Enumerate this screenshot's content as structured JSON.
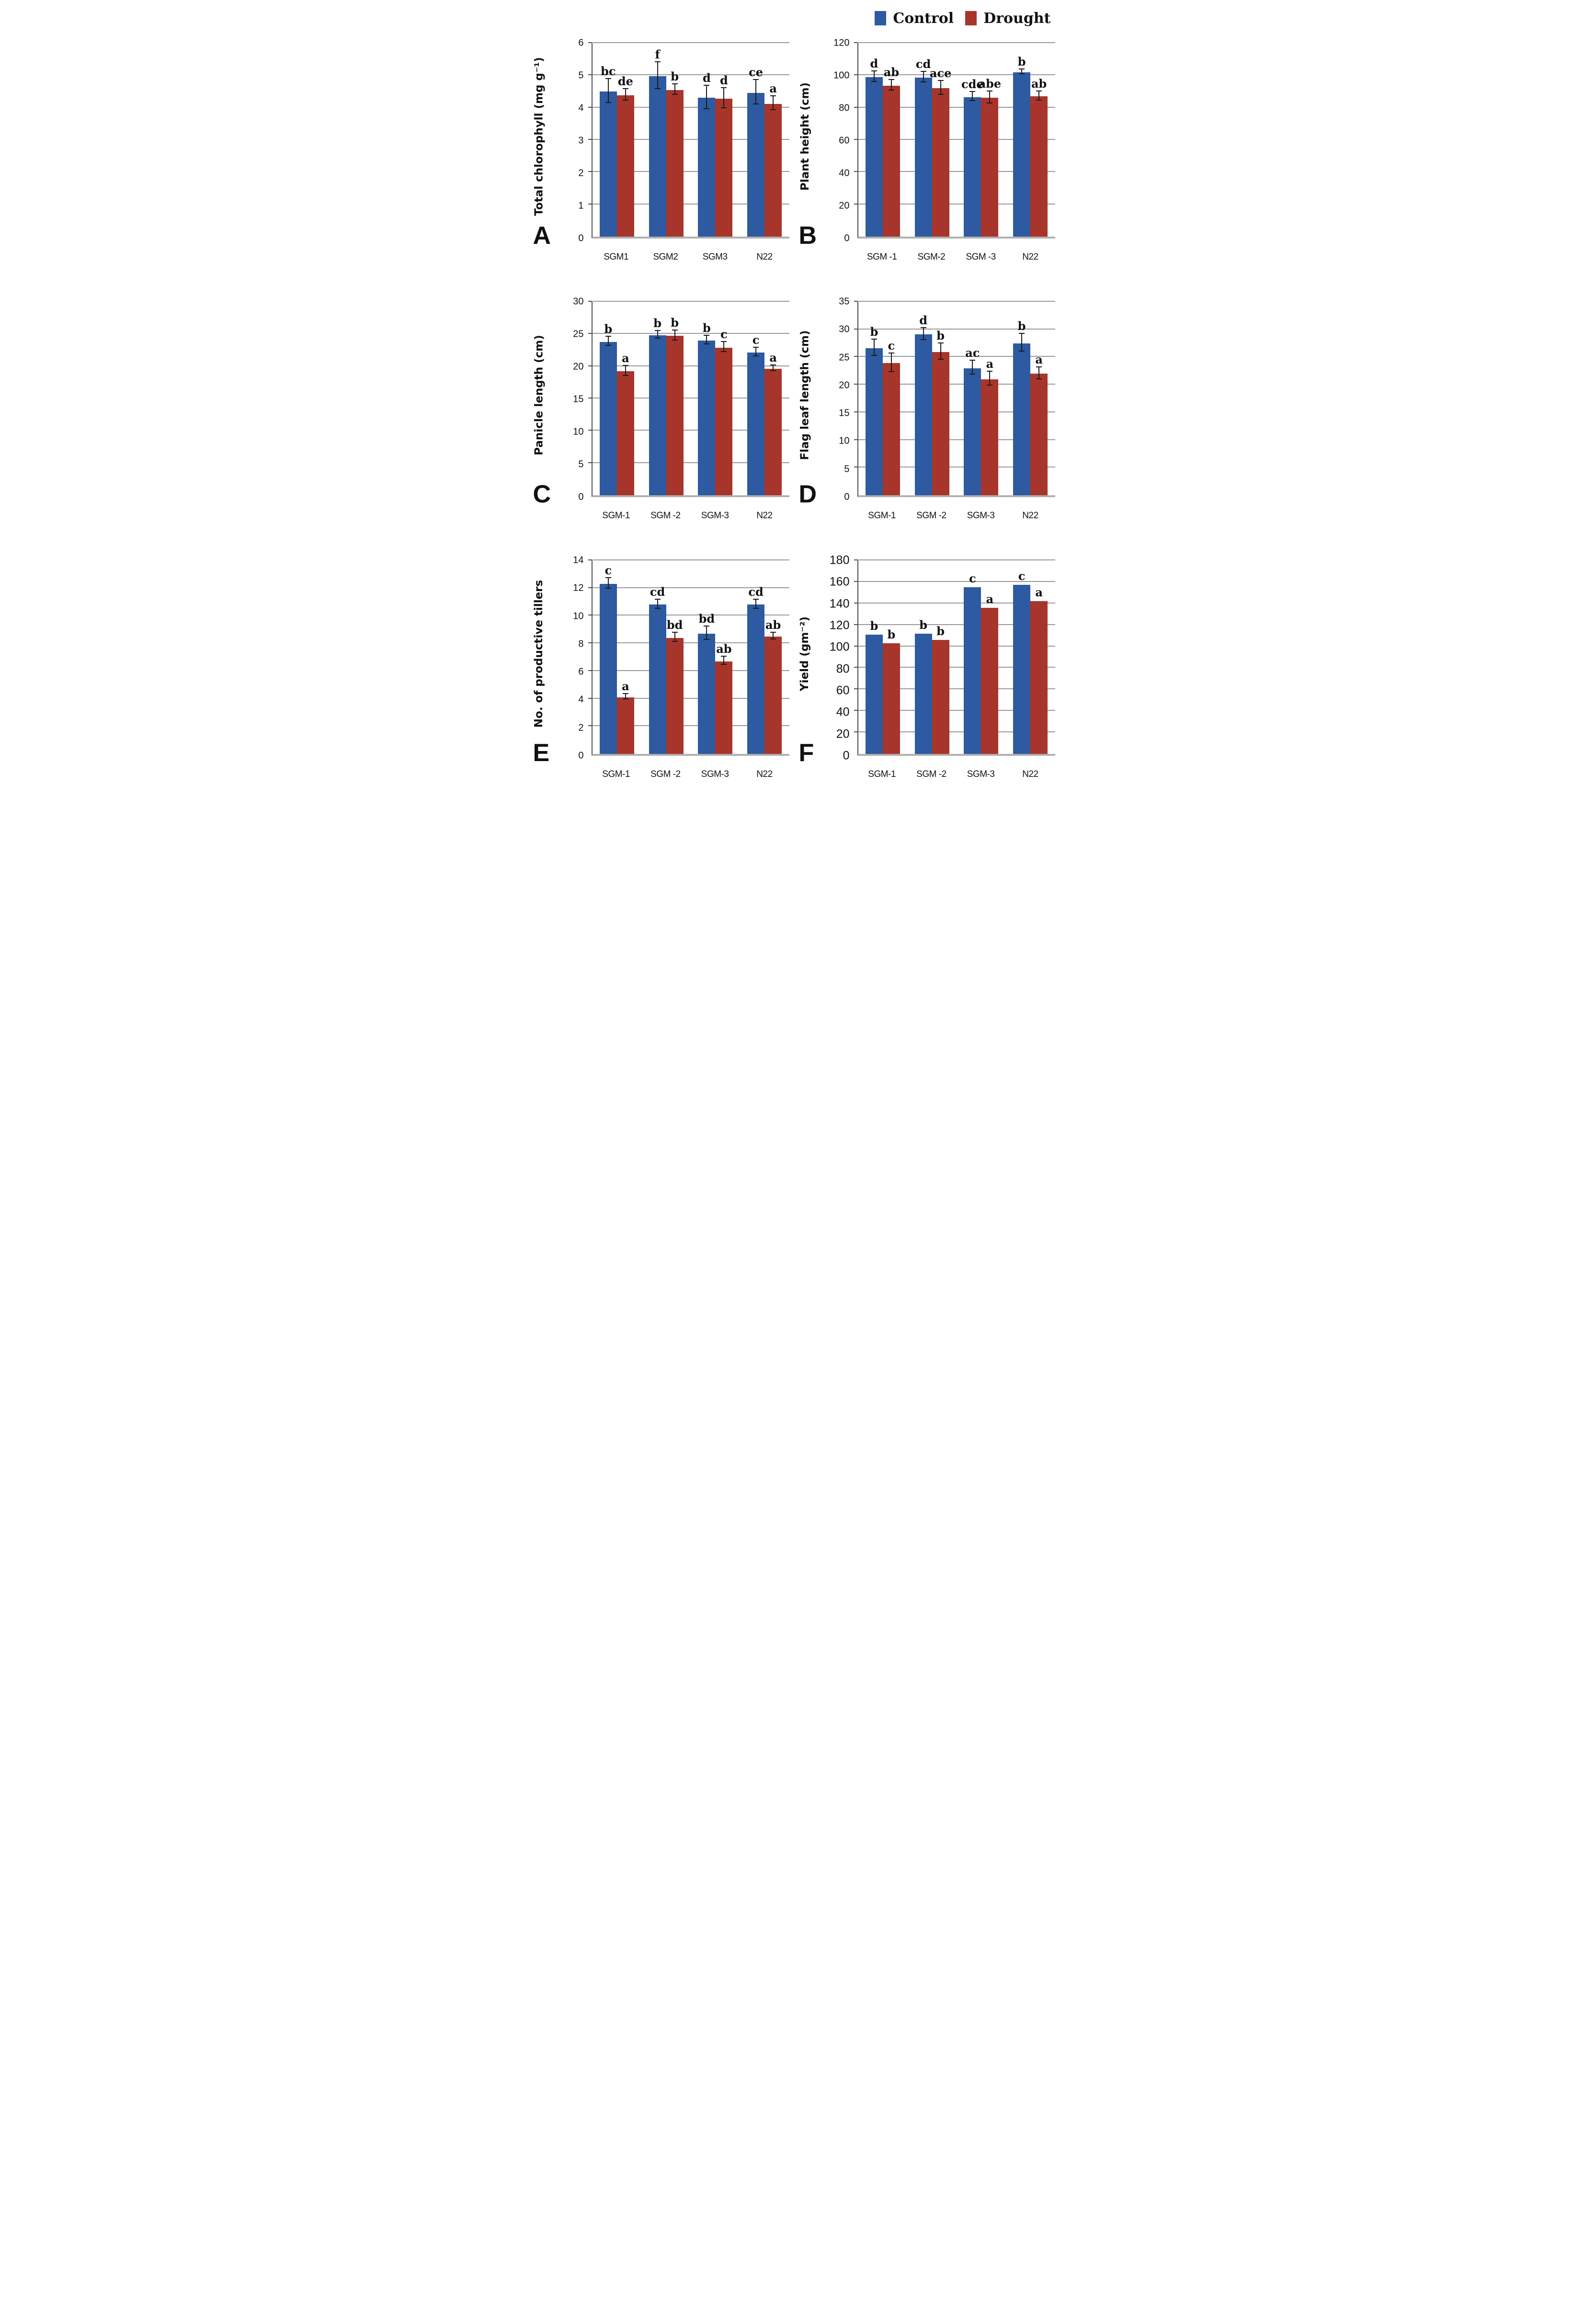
{
  "legend": {
    "control": "Control",
    "drought": "Drought"
  },
  "colors": {
    "control": "#2d5aa0",
    "drought": "#a8352b"
  },
  "chart_data": [
    {
      "type": "bar",
      "panel": "A",
      "ylabel": "Total chlorophyll (mg g⁻¹)",
      "ymax": 6,
      "ystep": 1,
      "grid": true,
      "legend_position": "top-right",
      "categories": [
        "SGM1",
        "SGM2",
        "SGM3",
        "N22"
      ],
      "series": [
        {
          "name": "Control",
          "values": [
            4.5,
            4.97,
            4.3,
            4.46
          ],
          "errors": [
            0.35,
            0.4,
            0.35,
            0.36
          ],
          "letters": [
            "bc",
            "f",
            "d",
            "ce"
          ]
        },
        {
          "name": "Drought",
          "values": [
            4.38,
            4.55,
            4.28,
            4.12
          ],
          "errors": [
            0.16,
            0.15,
            0.3,
            0.2
          ],
          "letters": [
            "de",
            "b",
            "d",
            "a"
          ]
        }
      ]
    },
    {
      "type": "bar",
      "panel": "B",
      "ylabel": "Plant height (cm)",
      "ymax": 120,
      "ystep": 20,
      "grid": true,
      "categories": [
        "SGM -1",
        "SGM-2",
        "SGM -3",
        "N22"
      ],
      "series": [
        {
          "name": "Control",
          "values": [
            99,
            98.5,
            86.5,
            102
          ],
          "errors": [
            3,
            3,
            2.5,
            1.2
          ],
          "letters": [
            "d",
            "cd",
            "cde",
            "b"
          ]
        },
        {
          "name": "Drought",
          "values": [
            93.5,
            92,
            86,
            87
          ],
          "errors": [
            3,
            4,
            3.5,
            2.5
          ],
          "letters": [
            "ab",
            "ace",
            "abe",
            "ab"
          ]
        }
      ]
    },
    {
      "type": "bar",
      "panel": "C",
      "ylabel": "Panicle length (cm)",
      "ymax": 30,
      "ystep": 5,
      "grid": true,
      "categories": [
        "SGM-1",
        "SGM -2",
        "SGM-3",
        "N22"
      ],
      "series": [
        {
          "name": "Control",
          "values": [
            23.8,
            24.8,
            24,
            22.1
          ],
          "errors": [
            0.6,
            0.5,
            0.6,
            0.6
          ],
          "letters": [
            "b",
            "b",
            "b",
            "c"
          ]
        },
        {
          "name": "Drought",
          "values": [
            19.2,
            24.7,
            22.9,
            19.6
          ],
          "errors": [
            0.7,
            0.7,
            0.7,
            0.4
          ],
          "letters": [
            "a",
            "b",
            "c",
            "a"
          ]
        }
      ]
    },
    {
      "type": "bar",
      "panel": "D",
      "ylabel": "Flag leaf length (cm)",
      "ymax": 35,
      "ystep": 5,
      "grid": true,
      "categories": [
        "SGM-1",
        "SGM -2",
        "SGM-3",
        "N22"
      ],
      "series": [
        {
          "name": "Control",
          "values": [
            26.6,
            29.1,
            23,
            27.5
          ],
          "errors": [
            1.4,
            1,
            1.2,
            1.5
          ],
          "letters": [
            "b",
            "d",
            "ac",
            "b"
          ]
        },
        {
          "name": "Drought",
          "values": [
            23.9,
            25.9,
            21,
            22
          ],
          "errors": [
            1.6,
            1.4,
            1.2,
            1
          ],
          "letters": [
            "c",
            "b",
            "a",
            "a"
          ]
        }
      ]
    },
    {
      "type": "bar",
      "panel": "E",
      "ylabel": "No. of productive tillers",
      "ymax": 14,
      "ystep": 2,
      "grid": true,
      "categories": [
        "SGM-1",
        "SGM -2",
        "SGM-3",
        "N22"
      ],
      "series": [
        {
          "name": "Control",
          "values": [
            12.3,
            10.8,
            8.7,
            10.8
          ],
          "errors": [
            0.35,
            0.3,
            0.45,
            0.3
          ],
          "letters": [
            "c",
            "cd",
            "bd",
            "cd"
          ]
        },
        {
          "name": "Drought",
          "values": [
            4.1,
            8.4,
            6.7,
            8.5
          ],
          "errors": [
            0.15,
            0.3,
            0.25,
            0.2
          ],
          "letters": [
            "a",
            "bd",
            "ab",
            "ab"
          ]
        }
      ]
    },
    {
      "type": "bar",
      "panel": "F",
      "ylabel": "Yield (gm⁻²)",
      "ymax": 180,
      "ystep": 20,
      "grid": true,
      "categories": [
        "SGM-1",
        "SGM -2",
        "SGM-3",
        "N22"
      ],
      "series": [
        {
          "name": "Control",
          "values": [
            111,
            112,
            155,
            157.5
          ],
          "errors": [
            0,
            0,
            0,
            0
          ],
          "letters": [
            "b",
            "b",
            "c",
            "c"
          ]
        },
        {
          "name": "Drought",
          "values": [
            103,
            106,
            136,
            142
          ],
          "errors": [
            0,
            0,
            0,
            0
          ],
          "letters": [
            "b",
            "b",
            "a",
            "a"
          ]
        }
      ]
    }
  ]
}
